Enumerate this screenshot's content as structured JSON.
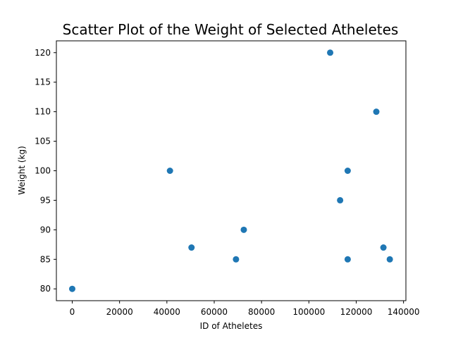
{
  "chart_data": {
    "type": "scatter",
    "title": "Scatter Plot of the Weight of Selected Atheletes",
    "xlabel": "ID of Atheletes",
    "ylabel": "Weight (kg)",
    "xlim": [
      -6700,
      141000
    ],
    "ylim": [
      78,
      122
    ],
    "x_ticks": [
      0,
      20000,
      40000,
      60000,
      80000,
      100000,
      120000,
      140000
    ],
    "y_ticks": [
      80,
      85,
      90,
      95,
      100,
      105,
      110,
      115,
      120
    ],
    "grid": false,
    "marker_color": "#1f77b4",
    "points": [
      {
        "x": 0,
        "y": 80
      },
      {
        "x": 41300,
        "y": 100
      },
      {
        "x": 50400,
        "y": 87
      },
      {
        "x": 69200,
        "y": 85
      },
      {
        "x": 72500,
        "y": 90
      },
      {
        "x": 109000,
        "y": 120
      },
      {
        "x": 113200,
        "y": 95
      },
      {
        "x": 116400,
        "y": 100
      },
      {
        "x": 116400,
        "y": 85
      },
      {
        "x": 128500,
        "y": 110
      },
      {
        "x": 131500,
        "y": 87
      },
      {
        "x": 134200,
        "y": 85
      }
    ]
  }
}
